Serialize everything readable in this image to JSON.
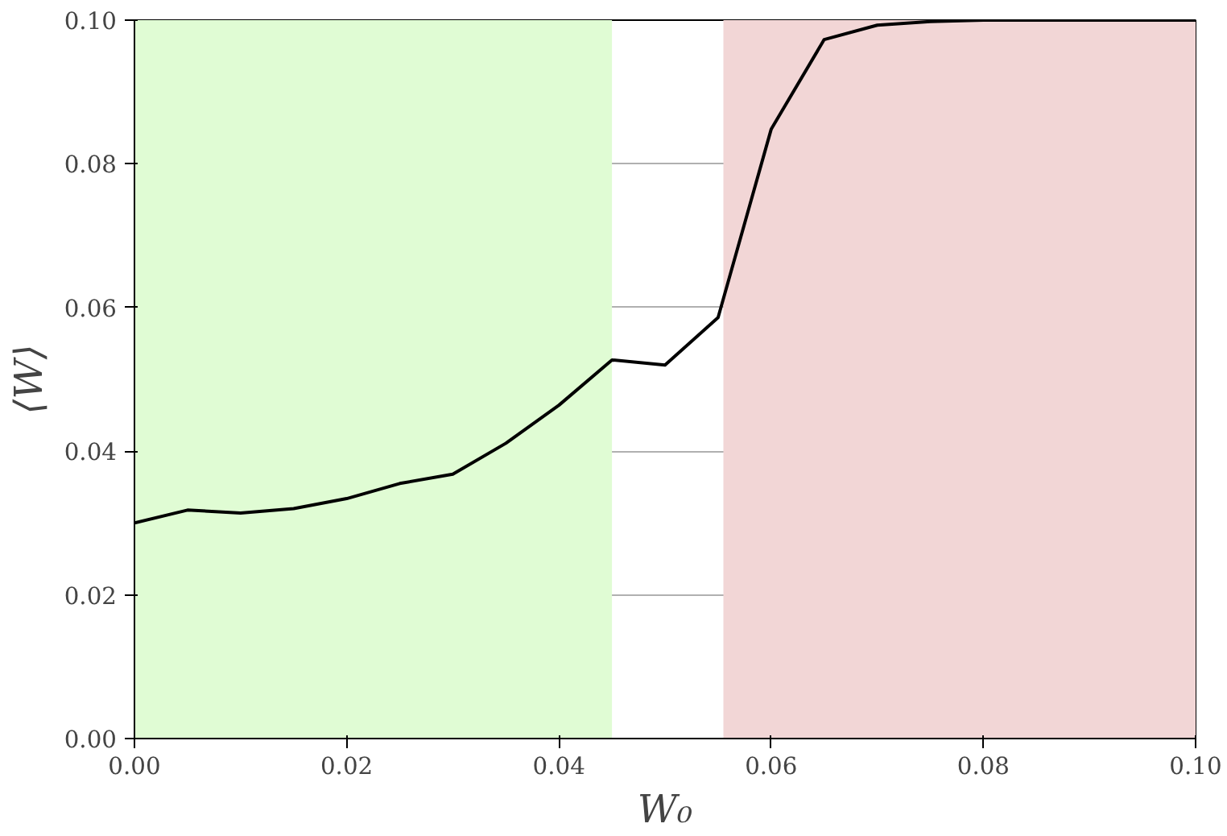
{
  "chart_data": {
    "type": "line",
    "xlabel": "W₀",
    "ylabel": "⟨W⟩",
    "x": [
      0,
      0.005,
      0.01,
      0.015,
      0.02,
      0.025,
      0.03,
      0.035,
      0.04,
      0.045,
      0.05,
      0.055,
      0.06,
      0.065,
      0.07,
      0.075,
      0.08,
      0.085,
      0.09,
      0.095,
      0.1
    ],
    "series": [
      {
        "color": "#000000",
        "values": [
          0.03,
          0.0318,
          0.0314,
          0.032,
          0.0334,
          0.0355,
          0.0368,
          0.0411,
          0.0464,
          0.0527,
          0.052,
          0.0586,
          0.0848,
          0.0973,
          0.0993,
          0.0998,
          0.1,
          0.1,
          0.1,
          0.1,
          0.1
        ]
      }
    ],
    "xlim": [
      0,
      0.1
    ],
    "ylim": [
      0,
      0.1
    ],
    "xticks": [
      {
        "value": 0,
        "label": "0.00"
      },
      {
        "value": 0.02,
        "label": "0.02"
      },
      {
        "value": 0.04,
        "label": "0.04"
      },
      {
        "value": 0.06,
        "label": "0.06"
      },
      {
        "value": 0.08,
        "label": "0.08"
      },
      {
        "value": 0.1,
        "label": "0.10"
      }
    ],
    "yticks": [
      {
        "value": 0,
        "label": "0.00"
      },
      {
        "value": 0.02,
        "label": "0.02"
      },
      {
        "value": 0.04,
        "label": "0.04"
      },
      {
        "value": 0.06,
        "label": "0.06"
      },
      {
        "value": 0.08,
        "label": "0.08"
      },
      {
        "value": 0.1,
        "label": "0.10"
      }
    ],
    "bands": [
      {
        "axis": "x",
        "from": 0,
        "to": 0.045,
        "color": "#e0fcd4"
      },
      {
        "axis": "x",
        "from": 0.0555,
        "to": 0.1,
        "color": "#f2d6d6"
      }
    ],
    "grid": true,
    "line_style": "solid",
    "marker": "none"
  }
}
